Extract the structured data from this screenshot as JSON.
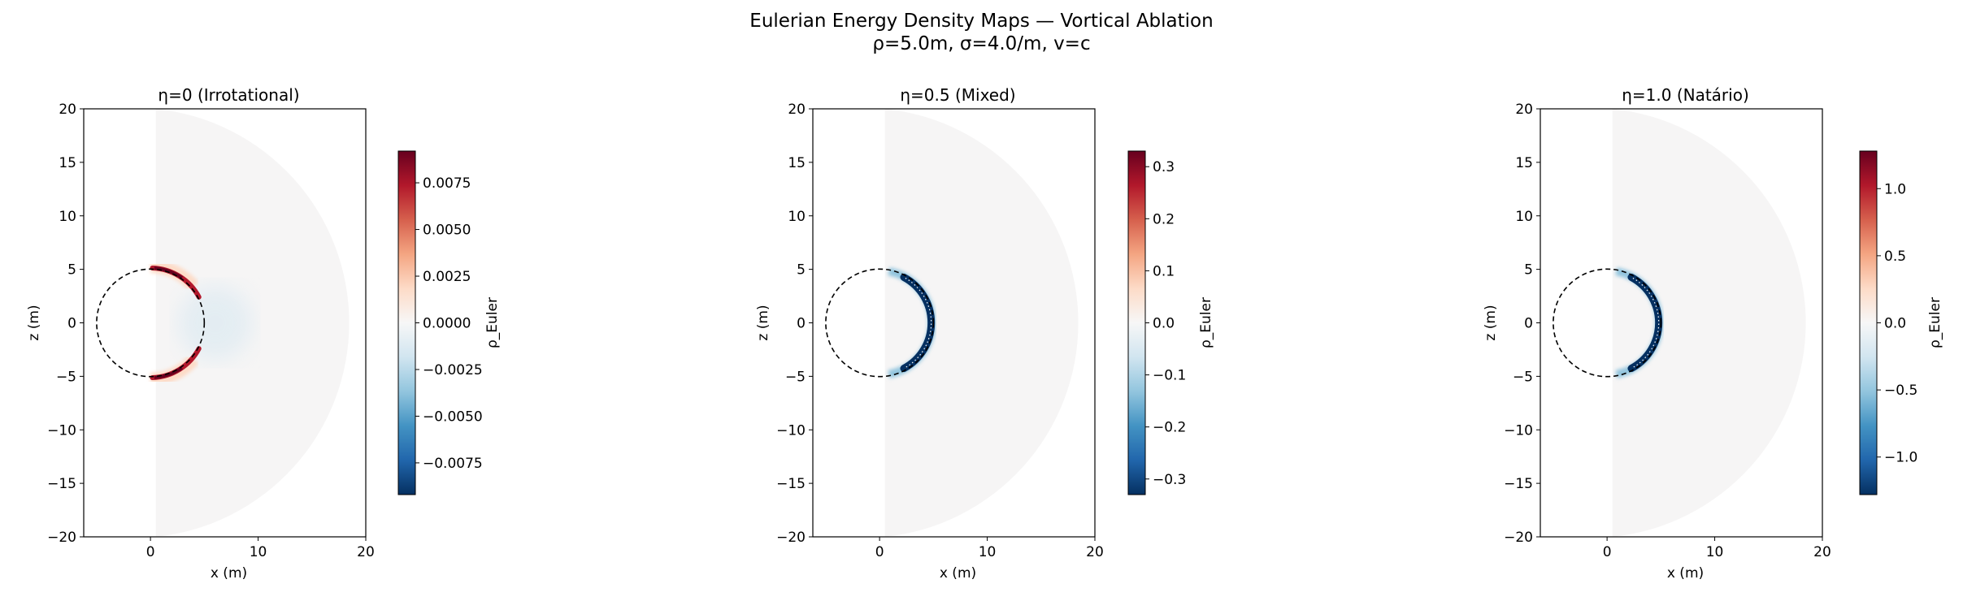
{
  "figure": {
    "title_line1": "Eulerian Energy Density Maps — Vortical Ablation",
    "title_line2": "ρ=5.0m, σ=4.0/m, v=c"
  },
  "chart_data": [
    {
      "type": "heatmap",
      "title": "η=0 (Irrotational)",
      "xlabel": "x (m)",
      "ylabel": "z (m)",
      "xlim": [
        -6.2,
        20
      ],
      "ylim": [
        -20,
        20
      ],
      "xticks": [
        0,
        10,
        20
      ],
      "yticks": [
        -20,
        -15,
        -10,
        -5,
        0,
        5,
        10,
        15,
        20
      ],
      "colorbar": {
        "label": "ρ_Euler",
        "range": [
          -0.0092,
          0.0092
        ],
        "ticks": [
          0.0075,
          0.005,
          0.0025,
          0.0,
          -0.0025,
          -0.005,
          -0.0075
        ],
        "tick_labels": [
          "0.0075",
          "0.0050",
          "0.0025",
          "0.0000",
          "−0.0025",
          "−0.0050",
          "−0.0075"
        ],
        "colormap": "RdBu_r"
      },
      "bubble_radius": 5.0,
      "domain_radius": 20,
      "pattern": "positive (red) lobes near the poles of the bubble wall, weak negative (blue) outside equator"
    },
    {
      "type": "heatmap",
      "title": "η=0.5 (Mixed)",
      "xlabel": "x (m)",
      "ylabel": "z (m)",
      "xlim": [
        -6.2,
        20
      ],
      "ylim": [
        -20,
        20
      ],
      "xticks": [
        0,
        10,
        20
      ],
      "yticks": [
        -20,
        -15,
        -10,
        -5,
        0,
        5,
        10,
        15,
        20
      ],
      "colorbar": {
        "label": "ρ_Euler",
        "range": [
          -0.33,
          0.33
        ],
        "ticks": [
          0.3,
          0.2,
          0.1,
          0.0,
          -0.1,
          -0.2,
          -0.3
        ],
        "tick_labels": [
          "0.3",
          "0.2",
          "0.1",
          "0.0",
          "−0.1",
          "−0.2",
          "−0.3"
        ],
        "colormap": "RdBu_r"
      },
      "bubble_radius": 5.0,
      "domain_radius": 20,
      "pattern": "negative (blue) crescent along equatorial bubble wall"
    },
    {
      "type": "heatmap",
      "title": "η=1.0 (Natário)",
      "xlabel": "x (m)",
      "ylabel": "z (m)",
      "xlim": [
        -6.2,
        20
      ],
      "ylim": [
        -20,
        20
      ],
      "xticks": [
        0,
        10,
        20
      ],
      "yticks": [
        -20,
        -15,
        -10,
        -5,
        0,
        5,
        10,
        15,
        20
      ],
      "colorbar": {
        "label": "ρ_Euler",
        "range": [
          -1.28,
          1.28
        ],
        "ticks": [
          1.0,
          0.5,
          0.0,
          -0.5,
          -1.0
        ],
        "tick_labels": [
          "1.0",
          "0.5",
          "0.0",
          "−0.5",
          "−1.0"
        ],
        "colormap": "RdBu_r"
      },
      "bubble_radius": 5.0,
      "domain_radius": 20,
      "pattern": "negative (blue) crescent along equatorial bubble wall"
    }
  ]
}
